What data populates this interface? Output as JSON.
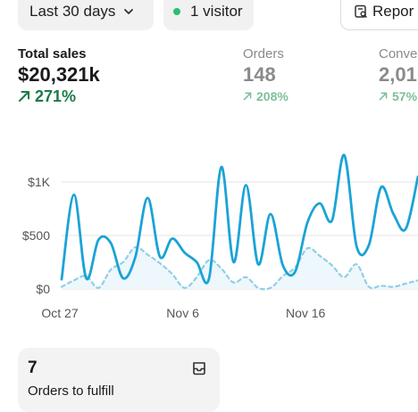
{
  "toolbar": {
    "date_range": "Last 30 days",
    "visitors": "1 visitor",
    "report_label": "Repor"
  },
  "metrics": [
    {
      "label": "Total sales",
      "value": "$20,321k",
      "delta": "271%"
    },
    {
      "label": "Orders",
      "value": "148",
      "delta": "208%"
    },
    {
      "label": "Conve",
      "value": "2,01",
      "delta": "57%"
    }
  ],
  "colors": {
    "primary_line": "#1ba3d6",
    "comparison_line": "#8fcfe6",
    "positive_green": "#1d7a47",
    "visitor_dot": "#29c073"
  },
  "icons": {
    "chevron": "chevron-down-icon",
    "report": "report-icon",
    "arrow": "arrow-up-right-icon",
    "inbox": "inbox-icon"
  },
  "chart_data": {
    "type": "line",
    "title": "",
    "xlabel": "",
    "ylabel": "",
    "ylim": [
      0,
      1000
    ],
    "yticks": [
      0,
      500,
      1000
    ],
    "ytick_labels": [
      "$0",
      "$500",
      "$1K"
    ],
    "xtick_labels": [
      {
        "label": "Oct 27",
        "index": 0
      },
      {
        "label": "Nov 6",
        "index": 10
      },
      {
        "label": "Nov 16",
        "index": 20
      }
    ],
    "grid": true,
    "legend": "none",
    "series": [
      {
        "style": "solid",
        "values": [
          90,
          880,
          100,
          460,
          430,
          100,
          300,
          850,
          300,
          470,
          340,
          250,
          100,
          1140,
          250,
          970,
          230,
          700,
          220,
          160,
          620,
          800,
          640,
          1250,
          400,
          410,
          950,
          700,
          560,
          1050
        ]
      },
      {
        "style": "dashed",
        "values": [
          20,
          80,
          120,
          10,
          180,
          250,
          390,
          320,
          240,
          140,
          10,
          110,
          270,
          190,
          60,
          110,
          10,
          10,
          120,
          200,
          380,
          310,
          220,
          110,
          230,
          20,
          30,
          20,
          50,
          80
        ]
      }
    ]
  },
  "card": {
    "count": "7",
    "label": "Orders to fulfill"
  }
}
